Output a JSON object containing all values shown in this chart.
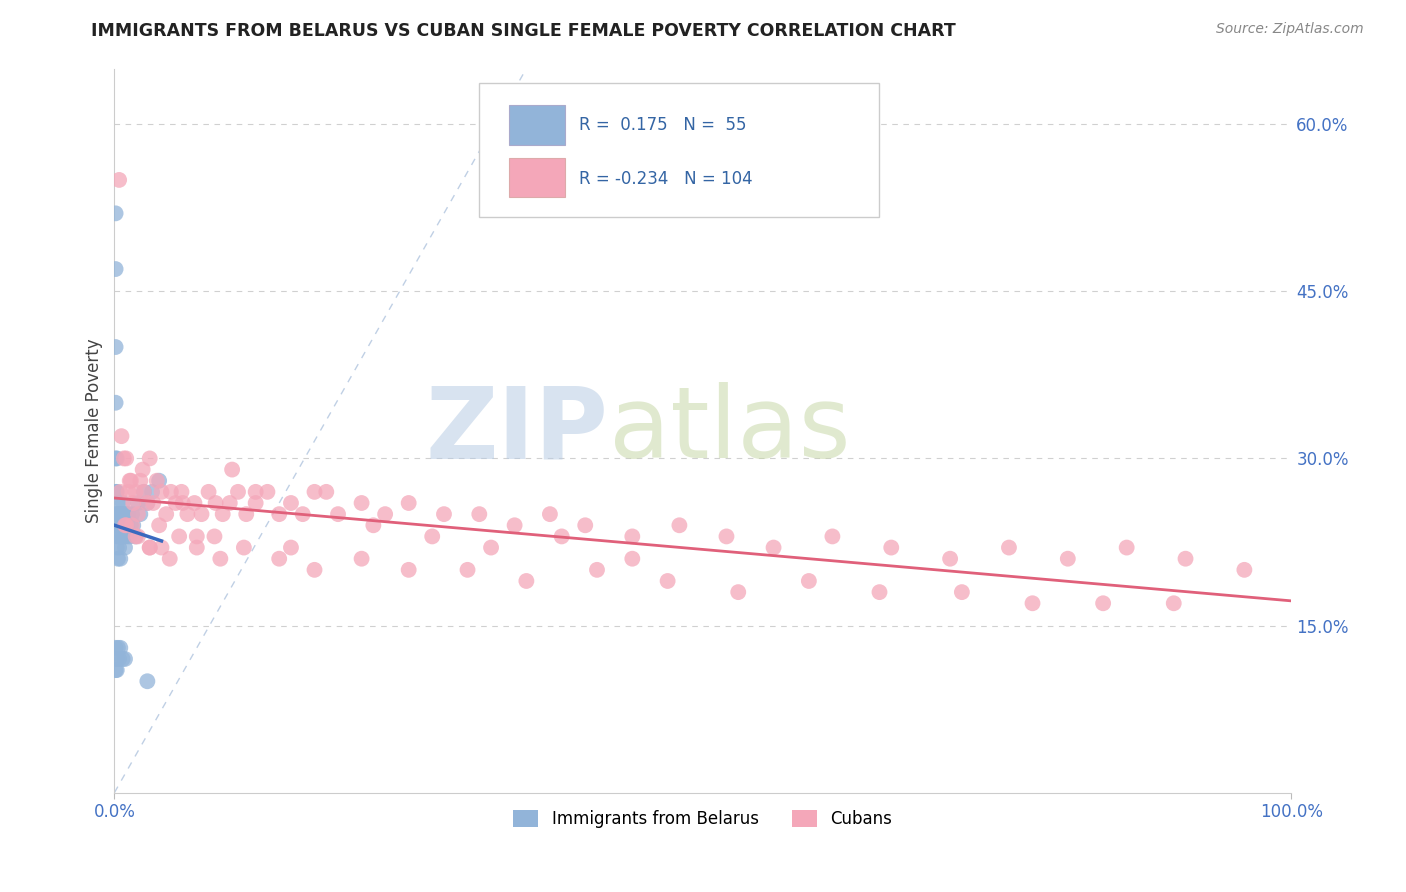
{
  "title": "IMMIGRANTS FROM BELARUS VS CUBAN SINGLE FEMALE POVERTY CORRELATION CHART",
  "source": "Source: ZipAtlas.com",
  "ylabel": "Single Female Poverty",
  "xlim": [
    0,
    1.0
  ],
  "ylim": [
    0,
    0.65
  ],
  "xtick_positions": [
    0.0,
    1.0
  ],
  "xtick_labels": [
    "0.0%",
    "100.0%"
  ],
  "ytick_vals_right": [
    0.15,
    0.3,
    0.45,
    0.6
  ],
  "ytick_labels_right": [
    "15.0%",
    "30.0%",
    "45.0%",
    "60.0%"
  ],
  "blue_R": 0.175,
  "blue_N": 55,
  "pink_R": -0.234,
  "pink_N": 104,
  "blue_color": "#92b4d9",
  "pink_color": "#f4a7b9",
  "trend_blue": "#3a6abf",
  "trend_pink": "#e0607a",
  "diag_color": "#b0c4de",
  "watermark_zip_color": "#b8cce4",
  "watermark_atlas_color": "#c8d8a8",
  "legend_text_color": "#3465a4",
  "axis_text_color": "#4472c4",
  "blue_x": [
    0.001,
    0.001,
    0.001,
    0.001,
    0.001,
    0.0015,
    0.0015,
    0.002,
    0.002,
    0.002,
    0.002,
    0.002,
    0.003,
    0.003,
    0.003,
    0.003,
    0.004,
    0.004,
    0.004,
    0.005,
    0.005,
    0.005,
    0.006,
    0.006,
    0.007,
    0.007,
    0.008,
    0.008,
    0.009,
    0.009,
    0.01,
    0.01,
    0.011,
    0.012,
    0.013,
    0.014,
    0.015,
    0.016,
    0.018,
    0.02,
    0.022,
    0.025,
    0.028,
    0.032,
    0.038,
    0.001,
    0.001,
    0.002,
    0.002,
    0.003,
    0.004,
    0.005,
    0.007,
    0.009,
    0.028
  ],
  "blue_y": [
    0.52,
    0.47,
    0.4,
    0.35,
    0.3,
    0.27,
    0.25,
    0.3,
    0.27,
    0.25,
    0.24,
    0.22,
    0.26,
    0.24,
    0.23,
    0.21,
    0.25,
    0.24,
    0.22,
    0.25,
    0.23,
    0.21,
    0.25,
    0.23,
    0.26,
    0.24,
    0.25,
    0.23,
    0.24,
    0.22,
    0.25,
    0.23,
    0.24,
    0.25,
    0.23,
    0.24,
    0.25,
    0.24,
    0.23,
    0.26,
    0.25,
    0.27,
    0.26,
    0.27,
    0.28,
    0.13,
    0.11,
    0.12,
    0.11,
    0.13,
    0.12,
    0.13,
    0.12,
    0.12,
    0.1
  ],
  "pink_x": [
    0.004,
    0.006,
    0.008,
    0.01,
    0.012,
    0.014,
    0.016,
    0.018,
    0.02,
    0.022,
    0.025,
    0.028,
    0.03,
    0.033,
    0.036,
    0.04,
    0.044,
    0.048,
    0.052,
    0.057,
    0.062,
    0.068,
    0.074,
    0.08,
    0.086,
    0.092,
    0.098,
    0.105,
    0.112,
    0.12,
    0.13,
    0.14,
    0.15,
    0.16,
    0.17,
    0.19,
    0.21,
    0.23,
    0.25,
    0.28,
    0.31,
    0.34,
    0.37,
    0.4,
    0.44,
    0.48,
    0.52,
    0.56,
    0.61,
    0.66,
    0.71,
    0.76,
    0.81,
    0.86,
    0.91,
    0.96,
    0.01,
    0.015,
    0.02,
    0.03,
    0.04,
    0.055,
    0.07,
    0.09,
    0.11,
    0.14,
    0.17,
    0.21,
    0.25,
    0.3,
    0.35,
    0.41,
    0.47,
    0.53,
    0.59,
    0.65,
    0.72,
    0.78,
    0.84,
    0.9,
    0.005,
    0.009,
    0.013,
    0.018,
    0.024,
    0.03,
    0.038,
    0.047,
    0.058,
    0.07,
    0.085,
    0.1,
    0.12,
    0.15,
    0.18,
    0.22,
    0.27,
    0.32,
    0.38,
    0.44
  ],
  "pink_y": [
    0.55,
    0.32,
    0.3,
    0.3,
    0.27,
    0.28,
    0.26,
    0.27,
    0.25,
    0.28,
    0.27,
    0.26,
    0.3,
    0.26,
    0.28,
    0.27,
    0.25,
    0.27,
    0.26,
    0.27,
    0.25,
    0.26,
    0.25,
    0.27,
    0.26,
    0.25,
    0.26,
    0.27,
    0.25,
    0.26,
    0.27,
    0.25,
    0.26,
    0.25,
    0.27,
    0.25,
    0.26,
    0.25,
    0.26,
    0.25,
    0.25,
    0.24,
    0.25,
    0.24,
    0.23,
    0.24,
    0.23,
    0.22,
    0.23,
    0.22,
    0.21,
    0.22,
    0.21,
    0.22,
    0.21,
    0.2,
    0.24,
    0.24,
    0.23,
    0.22,
    0.22,
    0.23,
    0.22,
    0.21,
    0.22,
    0.21,
    0.2,
    0.21,
    0.2,
    0.2,
    0.19,
    0.2,
    0.19,
    0.18,
    0.19,
    0.18,
    0.18,
    0.17,
    0.17,
    0.17,
    0.27,
    0.24,
    0.28,
    0.23,
    0.29,
    0.22,
    0.24,
    0.21,
    0.26,
    0.23,
    0.23,
    0.29,
    0.27,
    0.22,
    0.27,
    0.24,
    0.23,
    0.22,
    0.23,
    0.21
  ]
}
